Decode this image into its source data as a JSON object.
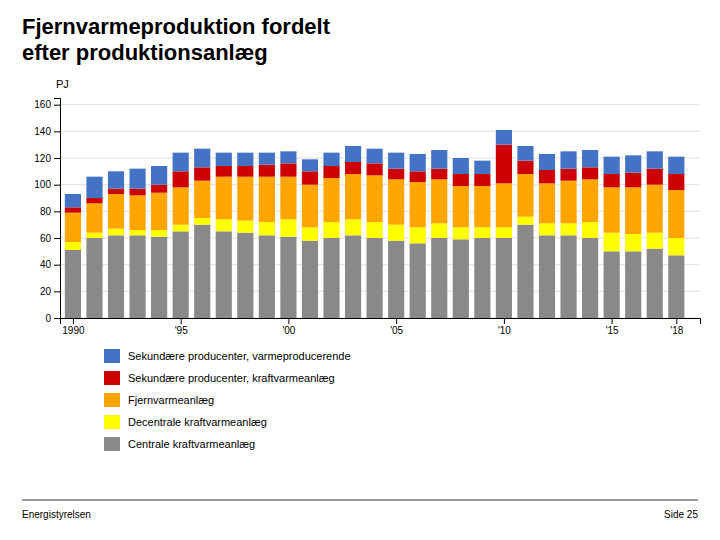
{
  "chart_data": {
    "type": "bar",
    "stacked": true,
    "title": "Fjernvarmeproduktion fordelt\nefter produktionsanlæg",
    "ylabel": "PJ",
    "x": [
      1990,
      1991,
      1992,
      1993,
      1994,
      1995,
      1996,
      1997,
      1998,
      1999,
      2000,
      2001,
      2002,
      2003,
      2004,
      2005,
      2006,
      2007,
      2008,
      2009,
      2010,
      2011,
      2012,
      2013,
      2014,
      2015,
      2016,
      2017,
      2018
    ],
    "series": [
      {
        "name": "Centrale kraftvarmeanlæg",
        "color": "#898989",
        "values": [
          51,
          60,
          62,
          62,
          61,
          65,
          70,
          65,
          64,
          62,
          61,
          58,
          60,
          62,
          60,
          58,
          56,
          60,
          59,
          60,
          60,
          70,
          62,
          62,
          60,
          50,
          50,
          52,
          47
        ]
      },
      {
        "name": "Decentrale kraftvarmeanlæg",
        "color": "#FFFF00",
        "values": [
          6,
          4,
          5,
          4,
          5,
          5,
          5,
          9,
          9,
          10,
          13,
          10,
          12,
          12,
          12,
          12,
          12,
          11,
          9,
          8,
          8,
          6,
          9,
          9,
          12,
          14,
          13,
          12,
          13
        ]
      },
      {
        "name": "Fjernvarmeanlæg",
        "color": "#FFA500",
        "values": [
          22,
          22,
          26,
          26,
          28,
          28,
          28,
          32,
          33,
          34,
          32,
          32,
          33,
          34,
          35,
          34,
          34,
          33,
          31,
          31,
          33,
          32,
          30,
          32,
          32,
          34,
          35,
          36,
          36
        ]
      },
      {
        "name": "Sekundære producenter, kraftvarmeanlæg",
        "color": "#CC0000",
        "values": [
          4,
          4,
          4,
          5,
          6,
          12,
          10,
          8,
          8,
          9,
          10,
          10,
          9,
          9,
          9,
          8,
          8,
          8,
          9,
          9,
          29,
          10,
          10,
          9,
          9,
          10,
          11,
          12,
          12
        ]
      },
      {
        "name": "Sekundære producenter, varmeproducerende",
        "color": "#4472C4",
        "values": [
          10,
          16,
          13,
          15,
          14,
          14,
          14,
          10,
          10,
          9,
          9,
          9,
          10,
          12,
          11,
          12,
          13,
          14,
          12,
          10,
          11,
          11,
          12,
          13,
          13,
          13,
          13,
          13,
          13
        ]
      }
    ],
    "xlim": [
      1989.4,
      2019.1
    ],
    "xticks": [
      1990,
      {
        "value": 1995,
        "label": "'95"
      },
      {
        "value": 2000,
        "label": "'00"
      },
      {
        "value": 2005,
        "label": "'05"
      },
      {
        "value": 2010,
        "label": "'10"
      },
      {
        "value": 2015,
        "label": "'15"
      },
      {
        "value": 2018,
        "label": "'18"
      }
    ],
    "ylim": [
      0,
      165
    ],
    "yticks": [
      0,
      20,
      40,
      60,
      80,
      100,
      120,
      140,
      160
    ],
    "grid": true,
    "legend": "bottom",
    "annotations": [
      "Energistyrelsen",
      "Side 25"
    ]
  }
}
